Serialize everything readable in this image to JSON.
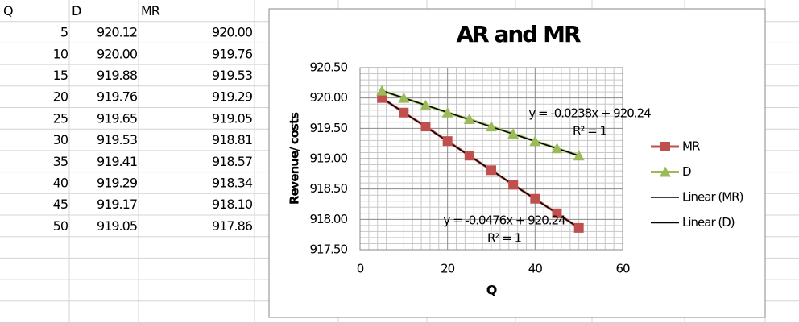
{
  "table": {
    "header": [
      "Q",
      "D",
      "MR"
    ],
    "rows": [
      [
        "5",
        "920.12",
        "920.00"
      ],
      [
        "10",
        "920.00",
        "919.76"
      ],
      [
        "15",
        "919.88",
        "919.53"
      ],
      [
        "20",
        "919.76",
        "919.29"
      ],
      [
        "25",
        "919.65",
        "919.05"
      ],
      [
        "30",
        "919.53",
        "918.81"
      ],
      [
        "35",
        "919.41",
        "918.57"
      ],
      [
        "40",
        "919.29",
        "918.34"
      ],
      [
        "45",
        "919.17",
        "918.10"
      ],
      [
        "50",
        "919.05",
        "917.86"
      ]
    ]
  },
  "chart_data": {
    "type": "scatter",
    "title": "AR and MR",
    "x_label": "Q",
    "y_label": "Revenue/ costs",
    "x": [
      5,
      10,
      15,
      20,
      25,
      30,
      35,
      40,
      45,
      50
    ],
    "series": [
      {
        "name": "MR",
        "color": "#c0504d",
        "marker": "square",
        "values": [
          920.0,
          919.76,
          919.53,
          919.29,
          919.05,
          918.81,
          918.57,
          918.34,
          918.1,
          917.86
        ]
      },
      {
        "name": "D",
        "color": "#9bbb59",
        "marker": "triangle",
        "values": [
          920.12,
          920.0,
          919.88,
          919.76,
          919.65,
          919.53,
          919.41,
          919.29,
          919.17,
          919.05
        ]
      }
    ],
    "trendlines": [
      {
        "name": "Linear (MR)",
        "series": "MR",
        "color": "#000000",
        "equation": "y = -0.0476x + 920.24",
        "r2": "R² = 1"
      },
      {
        "name": "Linear (D)",
        "series": "D",
        "color": "#000000",
        "equation": "y = -0.0238x + 920.24",
        "r2": "R² = 1"
      }
    ],
    "xlim": [
      0,
      60
    ],
    "xticks": [
      0,
      20,
      40,
      60
    ],
    "ylim": [
      917.5,
      920.5
    ],
    "yticks": [
      {
        "value": 917.5,
        "label": "917.50"
      },
      {
        "value": 918,
        "label": "918.00"
      },
      {
        "value": 918.5,
        "label": "918.50"
      },
      {
        "value": 919,
        "label": "919.00"
      },
      {
        "value": 919.5,
        "label": "919.50"
      },
      {
        "value": 920,
        "label": "920.00"
      },
      {
        "value": 920.5,
        "label": "920.50"
      }
    ],
    "grid": true,
    "legend": "right"
  }
}
